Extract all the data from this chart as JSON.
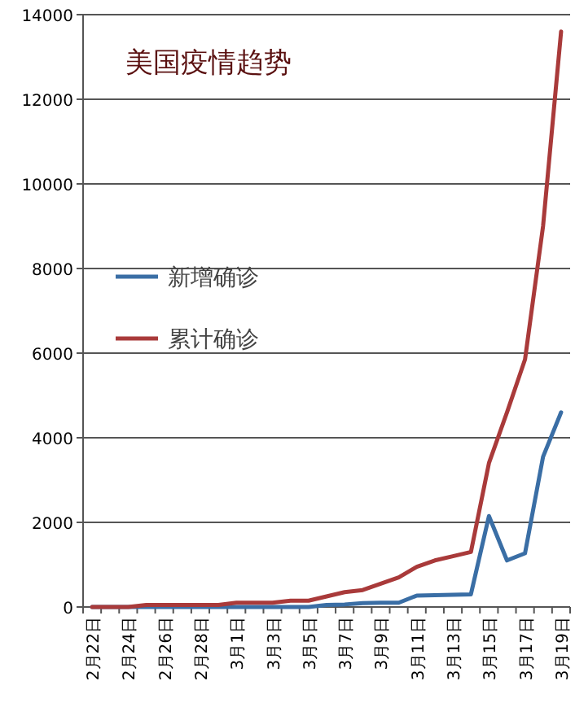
{
  "chart_data": {
    "type": "line",
    "title": "美国疫情趋势",
    "categories": [
      "2月22日",
      null,
      "2月24日",
      null,
      "2月26日",
      null,
      "2月28日",
      null,
      "3月1日",
      null,
      "3月3日",
      null,
      "3月5日",
      null,
      "3月7日",
      null,
      "3月9日",
      null,
      "3月11日",
      null,
      "3月13日",
      null,
      "3月15日",
      null,
      "3月17日",
      null,
      "3月19日"
    ],
    "series": [
      {
        "name": "新增确诊",
        "color": "#3a6ea5",
        "values": [
          0,
          0,
          0,
          0,
          0,
          0,
          0,
          0,
          0,
          0,
          0,
          0,
          0,
          50,
          60,
          90,
          100,
          100,
          270,
          280,
          290,
          300,
          2150,
          1100,
          1270,
          3550,
          4600
        ]
      },
      {
        "name": "累计确诊",
        "color": "#a93a3a",
        "values": [
          0,
          0,
          0,
          50,
          50,
          50,
          50,
          50,
          100,
          100,
          100,
          150,
          150,
          250,
          350,
          400,
          550,
          700,
          950,
          1100,
          1200,
          1300,
          3400,
          4600,
          5850,
          9000,
          13600
        ]
      }
    ],
    "ylim": [
      0,
      14000
    ],
    "yticks": [
      0,
      2000,
      4000,
      6000,
      8000,
      10000,
      12000,
      14000
    ],
    "grid": "y",
    "legend": "left",
    "marker": "none",
    "line_style": "solid"
  }
}
